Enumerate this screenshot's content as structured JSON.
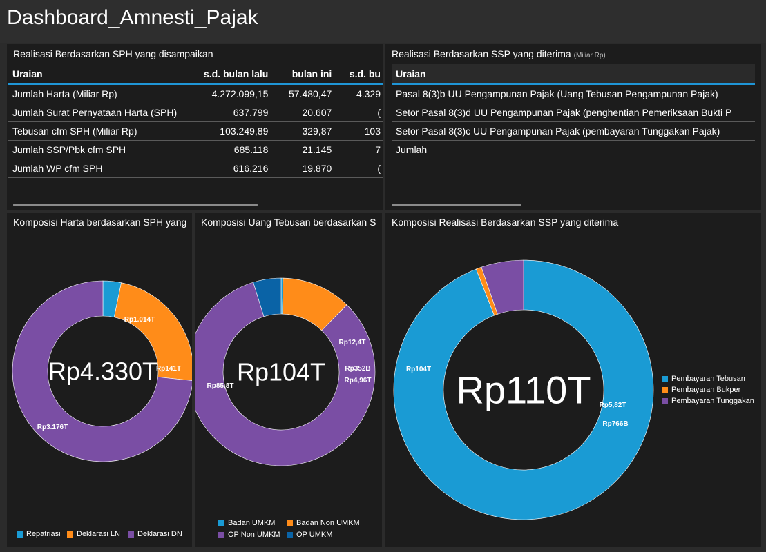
{
  "dashboard": {
    "title": "Dashboard_Amnesti_Pajak"
  },
  "colors": {
    "teal": "#1a9bd4",
    "orange": "#ff8c19",
    "purple": "#7a4ea4",
    "blue": "#0a63a6",
    "accent_line": "#1f95d6"
  },
  "sph_table": {
    "title": "Realisasi Berdasarkan SPH yang disampaikan",
    "headers": [
      "Uraian",
      "s.d. bulan lalu",
      "bulan ini",
      "s.d. bu"
    ],
    "rows": [
      [
        "Jumlah Harta (Miliar Rp)",
        "4.272.099,15",
        "57.480,47",
        "4.329"
      ],
      [
        "Jumlah Surat Pernyataan Harta (SPH)",
        "637.799",
        "20.607",
        "("
      ],
      [
        "Tebusan cfm SPH (Miliar Rp)",
        "103.249,89",
        "329,87",
        "103"
      ],
      [
        "Jumlah SSP/Pbk cfm SPH",
        "685.118",
        "21.145",
        "7"
      ],
      [
        "Jumlah WP cfm SPH",
        "616.216",
        "19.870",
        "("
      ]
    ]
  },
  "ssp_table": {
    "title": "Realisasi Berdasarkan SSP yang diterima",
    "unit": "(Miliar Rp)",
    "headers": [
      "Uraian"
    ],
    "rows": [
      [
        "Pasal 8(3)b UU Pengampunan Pajak (Uang Tebusan Pengampunan Pajak)"
      ],
      [
        "Setor Pasal 8(3)d UU Pengampunan Pajak (penghentian Pemeriksaan Bukti P"
      ],
      [
        "Setor Pasal 8(3)c UU Pengampunan Pajak (pembayaran Tunggakan Pajak)"
      ],
      [
        "Jumlah"
      ]
    ]
  },
  "charts": {
    "harta": {
      "title": "Komposisi Harta berdasarkan SPH yang",
      "center_label": "Rp4.330T",
      "legend": [
        "Repatriasi",
        "Deklarasi LN",
        "Deklarasi DN"
      ]
    },
    "tebusan": {
      "title": "Komposisi Uang Tebusan berdasarkan S",
      "center_label": "Rp104T",
      "legend": [
        "Badan UMKM",
        "Badan Non UMKM",
        "OP Non UMKM",
        "OP UMKM"
      ]
    },
    "ssp": {
      "title": "Komposisi Realisasi Berdasarkan SSP yang diterima",
      "center_label": "Rp110T",
      "legend": [
        "Pembayaran Tebusan",
        "Pembayaran Bukper",
        "Pembayaran Tunggakan"
      ]
    }
  },
  "chart_data": [
    {
      "type": "pie",
      "title": "Komposisi Harta berdasarkan SPH yang",
      "categories": [
        "Repatriasi",
        "Deklarasi LN",
        "Deklarasi DN"
      ],
      "values": [
        141,
        1014,
        3176
      ],
      "value_labels": [
        "Rp141T",
        "Rp1.014T",
        "Rp3.176T"
      ],
      "colors": [
        "#1a9bd4",
        "#ff8c19",
        "#7a4ea4"
      ],
      "donut": true,
      "legend": "bottom"
    },
    {
      "type": "pie",
      "title": "Komposisi Uang Tebusan berdasarkan S",
      "categories": [
        "Badan UMKM",
        "Badan Non UMKM",
        "OP Non UMKM",
        "OP UMKM"
      ],
      "values": [
        0.352,
        12.4,
        85.8,
        4.96
      ],
      "value_labels": [
        "Rp352B",
        "Rp12,4T",
        "Rp85,8T",
        "Rp4,96T"
      ],
      "colors": [
        "#1a9bd4",
        "#ff8c19",
        "#7a4ea4",
        "#0a63a6"
      ],
      "donut": true,
      "legend": "bottom"
    },
    {
      "type": "pie",
      "title": "Komposisi Realisasi Berdasarkan SSP yang diterima",
      "categories": [
        "Pembayaran Tebusan",
        "Pembayaran Bukper",
        "Pembayaran Tunggakan"
      ],
      "values": [
        104,
        0.766,
        5.82
      ],
      "value_labels": [
        "Rp104T",
        "Rp766B",
        "Rp5,82T"
      ],
      "colors": [
        "#1a9bd4",
        "#ff8c19",
        "#7a4ea4"
      ],
      "donut": true,
      "legend": "right"
    }
  ]
}
